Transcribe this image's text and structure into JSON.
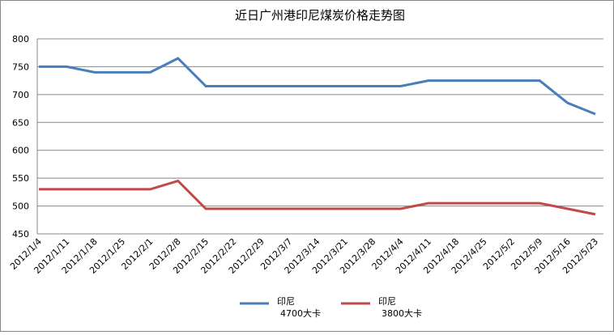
{
  "chart_data": {
    "type": "line",
    "title": "近日广州港印尼煤炭价格走势图",
    "categories": [
      "2012/1/4",
      "2012/1/11",
      "2012/1/18",
      "2012/1/25",
      "2012/2/1",
      "2012/2/8",
      "2012/2/15",
      "2012/2/22",
      "2012/2/29",
      "2012/3/7",
      "2012/3/14",
      "2012/3/21",
      "2012/3/28",
      "2012/4/4",
      "2012/4/11",
      "2012/4/18",
      "2012/4/25",
      "2012/5/2",
      "2012/5/9",
      "2012/5/16",
      "2012/5/23"
    ],
    "series": [
      {
        "name": "印尼\n4700大卡",
        "color": "#4a7ebb",
        "values": [
          750,
          750,
          740,
          740,
          740,
          765,
          715,
          715,
          715,
          715,
          715,
          715,
          715,
          715,
          725,
          725,
          725,
          725,
          725,
          685,
          665
        ]
      },
      {
        "name": "印尼\n3800大卡",
        "color": "#be4b48",
        "values": [
          530,
          530,
          530,
          530,
          530,
          545,
          495,
          495,
          495,
          495,
          495,
          495,
          495,
          495,
          505,
          505,
          505,
          505,
          505,
          495,
          485
        ]
      }
    ],
    "ylim": [
      450,
      800
    ],
    "yticks": [
      450,
      500,
      550,
      600,
      650,
      700,
      750,
      800
    ],
    "grid": true,
    "legend": "bottom"
  }
}
